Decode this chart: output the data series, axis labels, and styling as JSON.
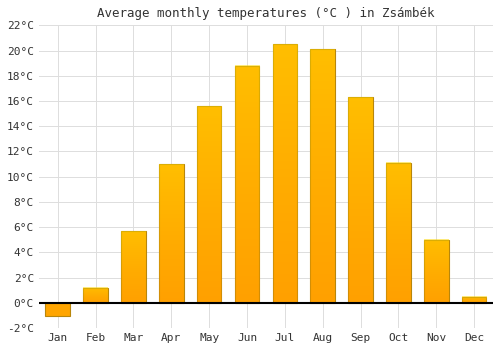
{
  "title": "Average monthly temperatures (°C ) in Zsámbék",
  "months": [
    "Jan",
    "Feb",
    "Mar",
    "Apr",
    "May",
    "Jun",
    "Jul",
    "Aug",
    "Sep",
    "Oct",
    "Nov",
    "Dec"
  ],
  "values": [
    -1.0,
    1.2,
    5.7,
    11.0,
    15.6,
    18.8,
    20.5,
    20.1,
    16.3,
    11.1,
    5.0,
    0.5
  ],
  "bar_color": "#FFA500",
  "bar_edge_color": "#B8860B",
  "background_color": "#ffffff",
  "grid_color": "#dddddd",
  "ylim": [
    -2,
    22
  ],
  "yticks": [
    -2,
    0,
    2,
    4,
    6,
    8,
    10,
    12,
    14,
    16,
    18,
    20,
    22
  ],
  "title_fontsize": 9,
  "tick_fontsize": 8,
  "figsize": [
    5.0,
    3.5
  ],
  "dpi": 100
}
